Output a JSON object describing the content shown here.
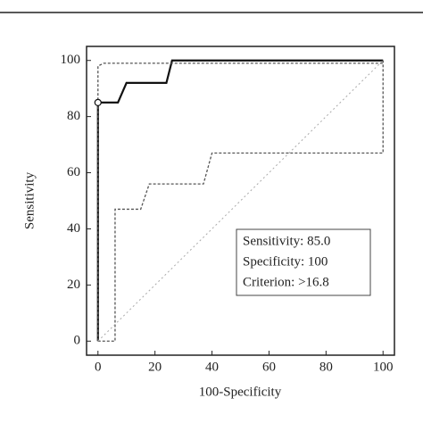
{
  "chart_data": {
    "type": "line",
    "x_label": "100-Specificity",
    "y_label": "Sensitivity",
    "xlim": [
      -4,
      104
    ],
    "ylim": [
      -5,
      105
    ],
    "xticks": [
      0,
      20,
      40,
      60,
      80,
      100
    ],
    "yticks": [
      0,
      20,
      40,
      60,
      80,
      100
    ],
    "series": [
      {
        "color": "#111111",
        "dash": "solid",
        "width": 2.2,
        "x": [
          0,
          0,
          7,
          10,
          24,
          26,
          100
        ],
        "values": [
          0,
          85,
          85,
          92,
          92,
          100,
          100
        ]
      },
      {
        "color": "#555555",
        "dash": "dashed",
        "width": 1.3,
        "x": [
          0,
          0,
          2,
          100,
          100
        ],
        "values": [
          0,
          98,
          99,
          99,
          100
        ]
      },
      {
        "color": "#555555",
        "dash": "dashed",
        "width": 1.3,
        "x": [
          0,
          6,
          6,
          15,
          18,
          37,
          40,
          100,
          100
        ],
        "values": [
          0,
          0,
          47,
          47,
          56,
          56,
          67,
          67,
          100
        ]
      },
      {
        "color": "#aaaaaa",
        "dash": "dotted",
        "width": 1,
        "x": [
          0,
          100
        ],
        "values": [
          0,
          100
        ]
      }
    ],
    "operating_point": {
      "x": 0,
      "y": 85
    },
    "annotation": [
      "Sensitivity: 85.0",
      "Specificity: 100",
      "Criterion: >16.8"
    ]
  }
}
